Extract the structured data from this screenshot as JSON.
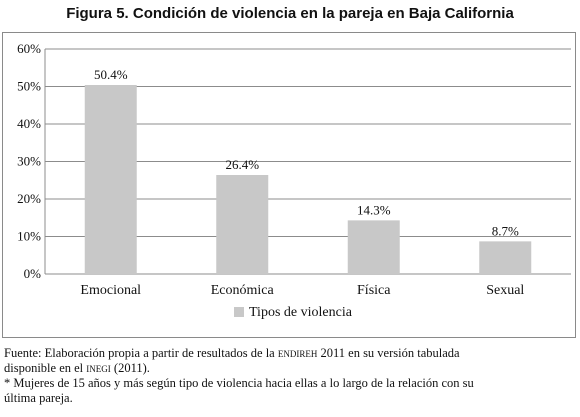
{
  "title": "Figura 5. Condición de violencia en la pareja en Baja California",
  "chart_data": {
    "type": "bar",
    "categories": [
      "Emocional",
      "Económica",
      "Física",
      "Sexual"
    ],
    "series": [
      {
        "name": "Tipos de violencia",
        "values": [
          50.4,
          26.4,
          14.3,
          8.7
        ]
      }
    ],
    "data_labels": [
      "50.4%",
      "26.4%",
      "14.3%",
      "8.7%"
    ],
    "yticks": [
      "0%",
      "10%",
      "20%",
      "30%",
      "40%",
      "50%",
      "60%"
    ],
    "ylim": [
      0,
      60
    ],
    "grid": true,
    "legend_position": "bottom",
    "bar_color": "#c8c8c8"
  },
  "footer": {
    "line1_a": "Fuente: Elaboración  propia a partir de resultados de la ",
    "line1_sc": "endireh",
    "line1_b": " 2011 en su versión tabulada",
    "line2_a": "disponible en el ",
    "line2_sc": "inegi",
    "line2_b": " (2011).",
    "line3": "* Mujeres de 15 años y más según tipo de violencia hacia ellas a lo largo de la relación con su",
    "line4": "última pareja."
  }
}
